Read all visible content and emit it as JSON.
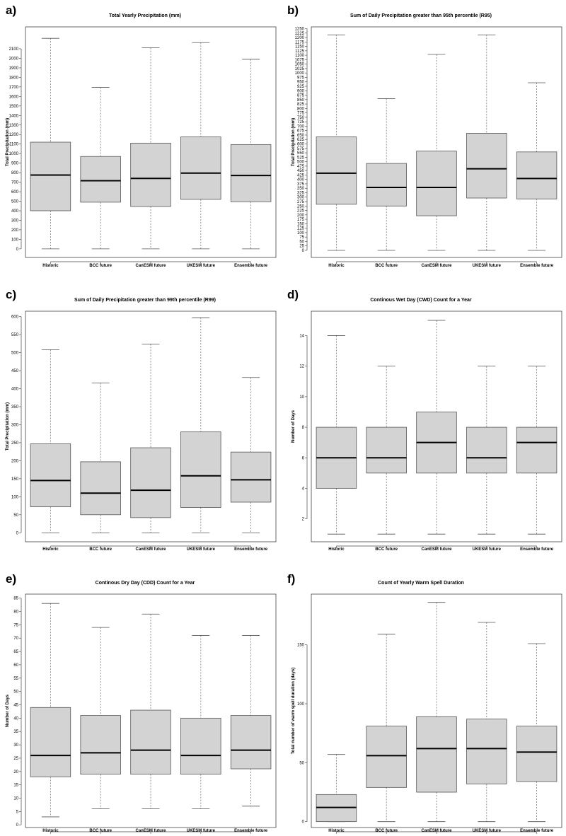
{
  "chart_data": [
    {
      "type": "box",
      "panel": "a)",
      "title": "Total Yearly Precipitation (mm)",
      "ylabel": "Total Precipitation (mm)",
      "xlabel": "",
      "categories": [
        "Historic",
        "BCC future",
        "CanESM future",
        "UKESM future",
        "Ensemble future"
      ],
      "yticks": [
        0,
        100,
        200,
        300,
        400,
        500,
        600,
        700,
        800,
        900,
        1000,
        1100,
        1200,
        1300,
        1400,
        1500,
        1600,
        1700,
        1800,
        1900,
        2000,
        2100
      ],
      "ylim": [
        -90,
        2330
      ],
      "boxes": [
        {
          "min": 0,
          "q1": 400,
          "median": 775,
          "q3": 1120,
          "max": 2210
        },
        {
          "min": 0,
          "q1": 490,
          "median": 715,
          "q3": 970,
          "max": 1695
        },
        {
          "min": 0,
          "q1": 445,
          "median": 740,
          "q3": 1110,
          "max": 2110
        },
        {
          "min": 0,
          "q1": 520,
          "median": 795,
          "q3": 1175,
          "max": 2165
        },
        {
          "min": 0,
          "q1": 495,
          "median": 770,
          "q3": 1095,
          "max": 1990
        }
      ]
    },
    {
      "type": "box",
      "panel": "b)",
      "title": "Sum of Daily Precipitation greater than 95th percentile (R95)",
      "ylabel": "Total Precipitation (mm)",
      "xlabel": "",
      "categories": [
        "Historic",
        "BCC future",
        "CanESM future",
        "UKESM future",
        "Ensemble future"
      ],
      "yticks": [
        0,
        25,
        50,
        75,
        100,
        125,
        150,
        175,
        200,
        225,
        250,
        275,
        300,
        325,
        350,
        375,
        400,
        425,
        450,
        475,
        500,
        525,
        550,
        575,
        600,
        625,
        650,
        675,
        700,
        725,
        750,
        775,
        800,
        825,
        850,
        875,
        900,
        925,
        950,
        975,
        1000,
        1025,
        1050,
        1075,
        1100,
        1125,
        1150,
        1175,
        1200,
        1225,
        1250
      ],
      "ylim": [
        -40,
        1260
      ],
      "boxes": [
        {
          "min": 0,
          "q1": 260,
          "median": 435,
          "q3": 640,
          "max": 1215
        },
        {
          "min": 0,
          "q1": 250,
          "median": 355,
          "q3": 490,
          "max": 855
        },
        {
          "min": 0,
          "q1": 195,
          "median": 355,
          "q3": 560,
          "max": 1105
        },
        {
          "min": 0,
          "q1": 295,
          "median": 460,
          "q3": 660,
          "max": 1215
        },
        {
          "min": 0,
          "q1": 290,
          "median": 405,
          "q3": 555,
          "max": 945
        }
      ]
    },
    {
      "type": "box",
      "panel": "c)",
      "title": "Sum of Daily Precipitation greater than 99th percentile (R99)",
      "ylabel": "Total Precipitation (mm)",
      "xlabel": "",
      "categories": [
        "Historic",
        "BCC future",
        "CanESM future",
        "UKESM future",
        "Ensemble future"
      ],
      "yticks": [
        0,
        50,
        100,
        150,
        200,
        250,
        300,
        350,
        400,
        450,
        500,
        550,
        600
      ],
      "ylim": [
        -25,
        615
      ],
      "boxes": [
        {
          "min": 0,
          "q1": 72,
          "median": 145,
          "q3": 247,
          "max": 508
        },
        {
          "min": 0,
          "q1": 50,
          "median": 110,
          "q3": 197,
          "max": 416
        },
        {
          "min": 0,
          "q1": 42,
          "median": 118,
          "q3": 236,
          "max": 524
        },
        {
          "min": 0,
          "q1": 70,
          "median": 158,
          "q3": 280,
          "max": 597
        },
        {
          "min": 0,
          "q1": 85,
          "median": 147,
          "q3": 224,
          "max": 431
        }
      ]
    },
    {
      "type": "box",
      "panel": "d)",
      "title": "Continous Wet Day (CWD) Count for a Year",
      "ylabel": "Number of Days",
      "xlabel": "",
      "categories": [
        "Historic",
        "BCC future",
        "CanESM future",
        "UKESM future",
        "Ensemble future"
      ],
      "yticks": [
        2,
        4,
        6,
        8,
        10,
        12,
        14
      ],
      "ylim": [
        0.5,
        15.6
      ],
      "boxes": [
        {
          "min": 1,
          "q1": 4,
          "median": 6,
          "q3": 8,
          "max": 14
        },
        {
          "min": 1,
          "q1": 5,
          "median": 6,
          "q3": 8,
          "max": 12
        },
        {
          "min": 1,
          "q1": 5,
          "median": 7,
          "q3": 9,
          "max": 15
        },
        {
          "min": 1,
          "q1": 5,
          "median": 6,
          "q3": 8,
          "max": 12
        },
        {
          "min": 1,
          "q1": 5,
          "median": 7,
          "q3": 8,
          "max": 12
        }
      ]
    },
    {
      "type": "box",
      "panel": "e)",
      "title": "Continous Dry Day (CDD) Count for a Year",
      "ylabel": "Number of Days",
      "xlabel": "",
      "categories": [
        "Historic",
        "BCC future",
        "CanESM future",
        "UKESM future",
        "Ensemble future"
      ],
      "yticks": [
        0,
        5,
        10,
        15,
        20,
        25,
        30,
        35,
        40,
        45,
        50,
        55,
        60,
        65,
        70,
        75,
        80,
        85
      ],
      "ylim": [
        -1,
        86.5
      ],
      "boxes": [
        {
          "min": 3,
          "q1": 18,
          "median": 26,
          "q3": 44,
          "max": 83
        },
        {
          "min": 6,
          "q1": 19,
          "median": 27,
          "q3": 41,
          "max": 74
        },
        {
          "min": 6,
          "q1": 19,
          "median": 28,
          "q3": 43,
          "max": 79
        },
        {
          "min": 6,
          "q1": 19,
          "median": 26,
          "q3": 40,
          "max": 71
        },
        {
          "min": 7,
          "q1": 21,
          "median": 28,
          "q3": 41,
          "max": 71
        }
      ]
    },
    {
      "type": "box",
      "panel": "f)",
      "title": "Count of Yearly Warm Spell Duration",
      "ylabel": "Total number of warm spell duration (days)",
      "xlabel": "",
      "categories": [
        "Historic",
        "BCC future",
        "CanESM future",
        "UKESM future",
        "Ensemble future"
      ],
      "yticks": [
        0,
        50,
        100,
        150
      ],
      "ylim": [
        -5,
        193
      ],
      "boxes": [
        {
          "min": 0,
          "q1": 0,
          "median": 12,
          "q3": 23,
          "max": 57
        },
        {
          "min": 0,
          "q1": 29,
          "median": 56,
          "q3": 81,
          "max": 159
        },
        {
          "min": 0,
          "q1": 25,
          "median": 62,
          "q3": 89,
          "max": 186
        },
        {
          "min": 0,
          "q1": 32,
          "median": 62,
          "q3": 87,
          "max": 169
        },
        {
          "min": 0,
          "q1": 34,
          "median": 59,
          "q3": 81,
          "max": 151
        }
      ]
    }
  ],
  "colors": {
    "box_fill": "#d3d3d3",
    "stroke": "#555555",
    "median": "#000000",
    "whisker": "#777777"
  }
}
